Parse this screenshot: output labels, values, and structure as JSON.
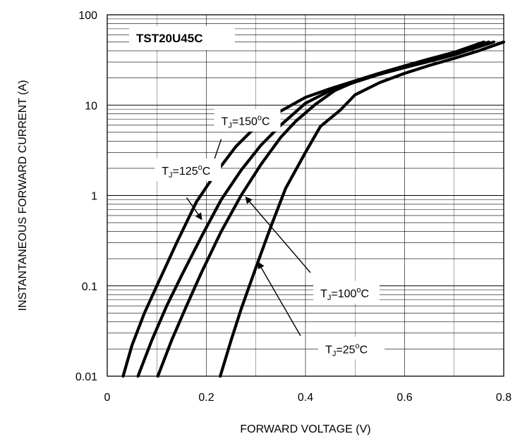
{
  "chart_data": {
    "type": "line",
    "title": "TST20U45C",
    "xlabel": "FORWARD VOLTAGE (V)",
    "ylabel": "INSTANTANEOUS FORWARD CURRENT (A)",
    "xlim": [
      0,
      0.8
    ],
    "ylim": [
      0.01,
      100
    ],
    "yscale": "log",
    "grid": "horizontal minor and major on y, major on x",
    "x_ticks": [
      "0",
      "0.2",
      "0.4",
      "0.6",
      "0.8"
    ],
    "y_ticks": [
      "0.01",
      "0.1",
      "1",
      "10",
      "100"
    ],
    "x_tick_values": [
      0,
      0.2,
      0.4,
      0.6,
      0.8
    ],
    "y_tick_values": [
      0.01,
      0.1,
      1,
      10,
      100
    ],
    "series": [
      {
        "name": "T_J=150°C",
        "label_main": "T",
        "label_sub": "J",
        "label_rest": "=150",
        "label_sup": "o",
        "label_unit": "C",
        "x": [
          0.032,
          0.05,
          0.075,
          0.1,
          0.14,
          0.18,
          0.22,
          0.26,
          0.3,
          0.35,
          0.4,
          0.45,
          0.5,
          0.55,
          0.6,
          0.65,
          0.7,
          0.76
        ],
        "y": [
          0.01,
          0.022,
          0.05,
          0.1,
          0.3,
          0.85,
          1.8,
          3.5,
          5.8,
          8.6,
          12.2,
          15.2,
          18.6,
          22.6,
          27.2,
          32.5,
          38.5,
          50
        ]
      },
      {
        "name": "T_J=125°C",
        "label_main": "T",
        "label_sub": "J",
        "label_rest": "=125",
        "label_sup": "o",
        "label_unit": "C",
        "x": [
          0.062,
          0.09,
          0.12,
          0.15,
          0.19,
          0.23,
          0.27,
          0.31,
          0.35,
          0.4,
          0.45,
          0.5,
          0.55,
          0.6,
          0.65,
          0.7,
          0.77
        ],
        "y": [
          0.01,
          0.025,
          0.06,
          0.13,
          0.35,
          0.9,
          1.9,
          3.6,
          6.0,
          10.5,
          14.5,
          18.0,
          22.0,
          26.5,
          31.5,
          37.5,
          50
        ]
      },
      {
        "name": "T_J=100°C",
        "label_main": "T",
        "label_sub": "J",
        "label_rest": "=100",
        "label_sup": "o",
        "label_unit": "C",
        "x": [
          0.102,
          0.13,
          0.16,
          0.19,
          0.23,
          0.27,
          0.31,
          0.35,
          0.38,
          0.42,
          0.46,
          0.5,
          0.55,
          0.6,
          0.65,
          0.7,
          0.78
        ],
        "y": [
          0.01,
          0.025,
          0.06,
          0.14,
          0.4,
          1.0,
          2.2,
          4.4,
          6.6,
          10.2,
          14.6,
          18.2,
          22.0,
          26.0,
          30.5,
          36.0,
          50
        ]
      },
      {
        "name": "T_J=25°C",
        "label_main": "T",
        "label_sub": "J",
        "label_rest": "=25",
        "label_sup": "o",
        "label_unit": "C",
        "x": [
          0.228,
          0.25,
          0.27,
          0.3,
          0.33,
          0.36,
          0.4,
          0.43,
          0.47,
          0.5,
          0.55,
          0.6,
          0.65,
          0.7,
          0.75,
          0.8
        ],
        "y": [
          0.01,
          0.025,
          0.055,
          0.16,
          0.45,
          1.2,
          3.0,
          5.8,
          8.8,
          13.0,
          17.8,
          22.5,
          27.5,
          33.0,
          40.0,
          50
        ]
      }
    ],
    "annotations": [
      {
        "series": 0,
        "text_anchor_data": [
          0.23,
          6.0
        ],
        "arrow_from": [
          0.23,
          4.2
        ],
        "arrow_to": [
          0.21,
          2.0
        ]
      },
      {
        "series": 1,
        "text_anchor_data": [
          0.11,
          1.7
        ],
        "arrow_from": [
          0.16,
          0.95
        ],
        "arrow_to": [
          0.19,
          0.55
        ]
      },
      {
        "series": 2,
        "text_anchor_data": [
          0.43,
          0.075
        ],
        "arrow_from": [
          0.41,
          0.14
        ],
        "arrow_to": [
          0.28,
          0.95
        ]
      },
      {
        "series": 3,
        "text_anchor_data": [
          0.44,
          0.018
        ],
        "arrow_from": [
          0.39,
          0.028
        ],
        "arrow_to": [
          0.305,
          0.18
        ]
      }
    ]
  }
}
